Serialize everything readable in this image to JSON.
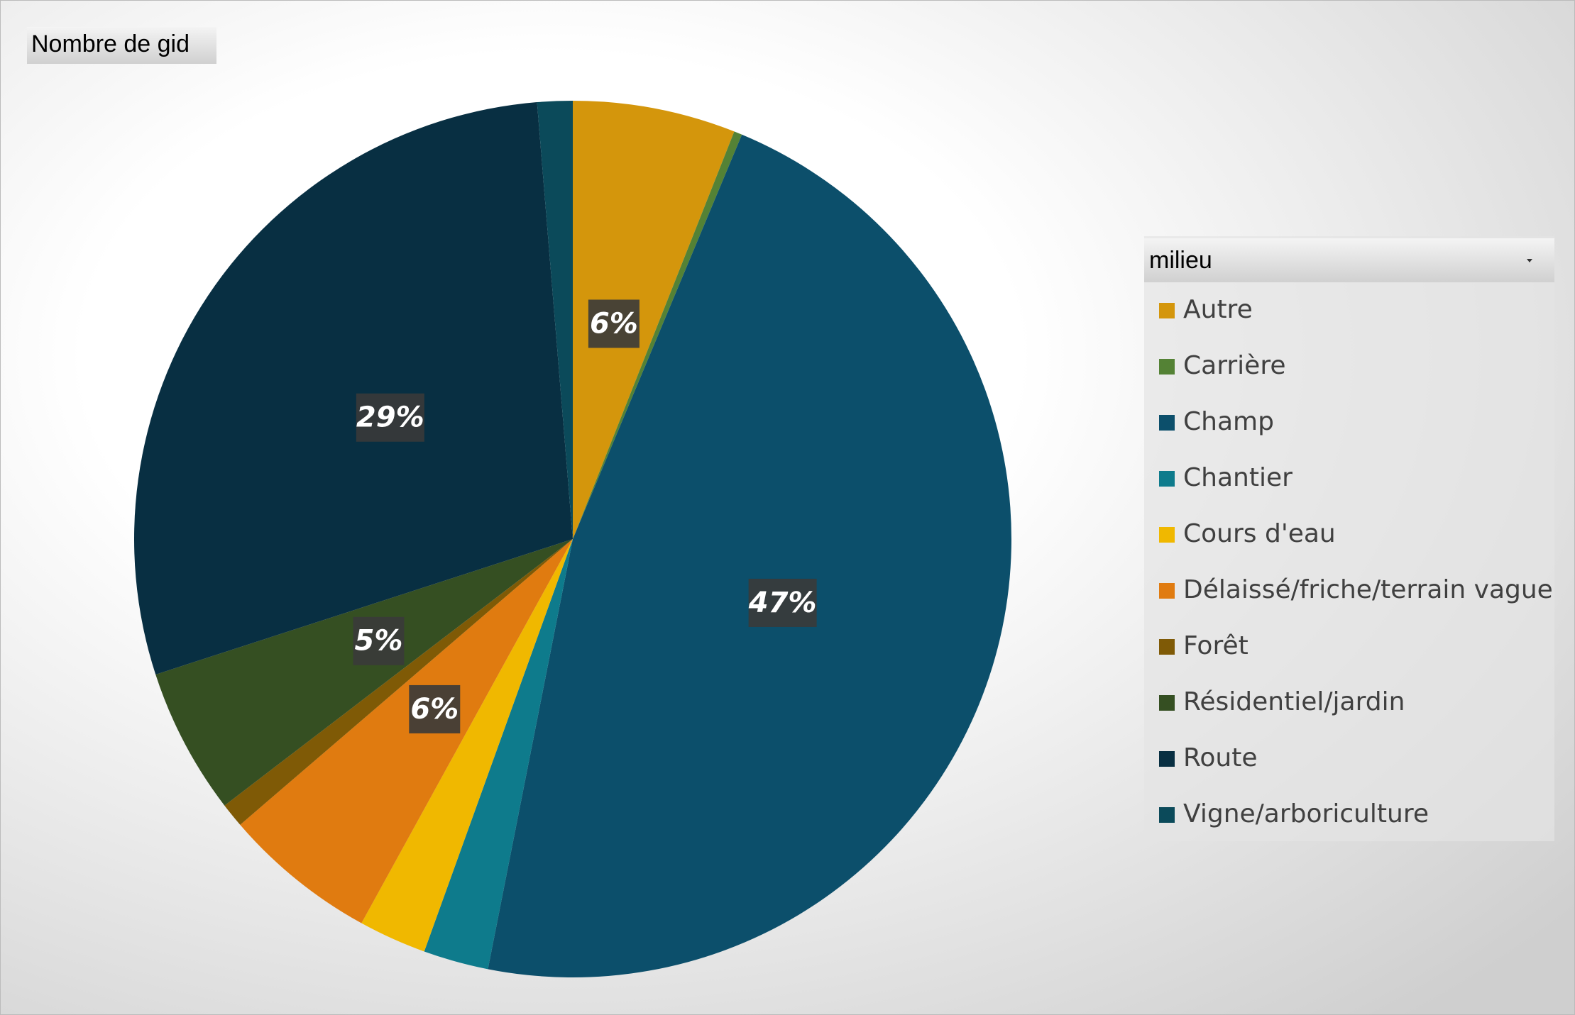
{
  "chart_data": {
    "type": "pie",
    "title": "Nombre de gid",
    "legend_title": "milieu",
    "categories": [
      "Autre",
      "Carrière",
      "Champ",
      "Chantier",
      "Cours d'eau",
      "Délaissé/friche/terrain vague",
      "Forêt",
      "Résidentiel/jardin",
      "Route",
      "Vigne/arboriculture"
    ],
    "values": [
      6.0,
      0.3,
      46.8,
      2.4,
      2.5,
      5.7,
      0.9,
      5.4,
      28.7,
      1.3
    ],
    "value_labels": [
      "6%",
      null,
      "47%",
      null,
      null,
      "6%",
      null,
      "5%",
      "29%",
      null
    ],
    "colors": [
      "#d4960c",
      "#548235",
      "#0c4f6b",
      "#0e7b8c",
      "#f0b800",
      "#e07b10",
      "#7f5a06",
      "#354f22",
      "#082f42",
      "#0b4a5a"
    ],
    "legend": "right"
  }
}
